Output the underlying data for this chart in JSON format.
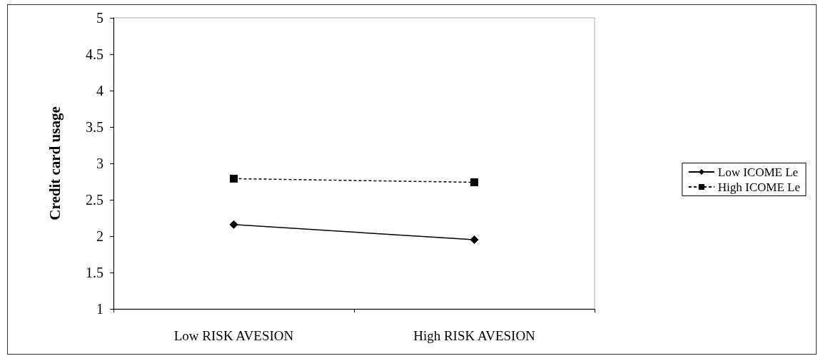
{
  "chart_data": {
    "type": "line",
    "ylabel": "Credit card usage",
    "categories": [
      "Low RISK AVESION",
      "High RISK AVESION"
    ],
    "series": [
      {
        "name": "Low ICOME Le",
        "color": "#000000",
        "values": [
          2.16,
          1.95
        ],
        "marker": "diamond",
        "line_style": "solid"
      },
      {
        "name": "High ICOME Le",
        "color": "#000000",
        "values": [
          2.79,
          2.74
        ],
        "marker": "square",
        "line_style": "dashed"
      }
    ],
    "ylim": [
      1,
      5
    ],
    "yticks": [
      1,
      1.5,
      2,
      2.5,
      3,
      3.5,
      4,
      4.5,
      5
    ],
    "grid": false,
    "legend": "right"
  }
}
